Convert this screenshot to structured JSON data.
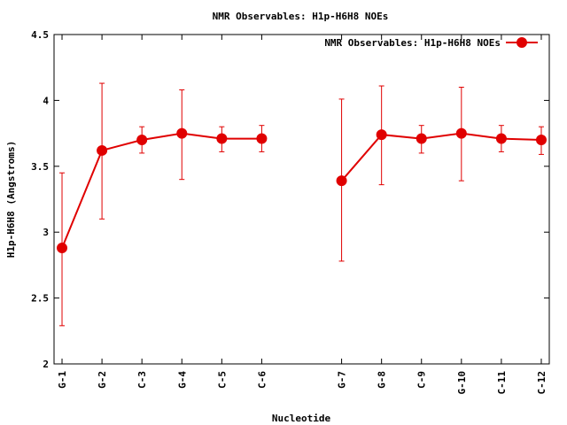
{
  "chart_data": {
    "type": "line",
    "title": "NMR Observables: H1p-H6H8 NOEs",
    "xlabel": "Nucleotide",
    "ylabel": "H1p-H6H8 (Angstroms)",
    "ylim": [
      2,
      4.5
    ],
    "yticks": [
      "2",
      "2.5",
      "3",
      "3.5",
      "4",
      "4.5"
    ],
    "categories": [
      "G-1",
      "G-2",
      "C-3",
      "G-4",
      "C-5",
      "C-6",
      "G-7",
      "G-8",
      "C-9",
      "G-10",
      "C-11",
      "C-12"
    ],
    "x": [
      1,
      2,
      3,
      4,
      5,
      6,
      8,
      9,
      10,
      11,
      12,
      13
    ],
    "xlim": [
      0.8,
      13.2
    ],
    "segments": [
      [
        0,
        5
      ],
      [
        6,
        11
      ]
    ],
    "grid": false,
    "legend": "top-right",
    "series": [
      {
        "name": "NMR Observables: H1p-H6H8 NOEs",
        "color": "#e00000",
        "values": [
          2.88,
          3.62,
          3.7,
          3.75,
          3.71,
          3.71,
          3.39,
          3.74,
          3.71,
          3.75,
          3.71,
          3.7
        ],
        "err_low": [
          2.29,
          3.1,
          3.6,
          3.4,
          3.61,
          3.61,
          2.78,
          3.36,
          3.6,
          3.39,
          3.61,
          3.59
        ],
        "err_high": [
          3.45,
          4.13,
          3.8,
          4.08,
          3.8,
          3.81,
          4.01,
          4.11,
          3.81,
          4.1,
          3.81,
          3.8
        ]
      }
    ]
  }
}
